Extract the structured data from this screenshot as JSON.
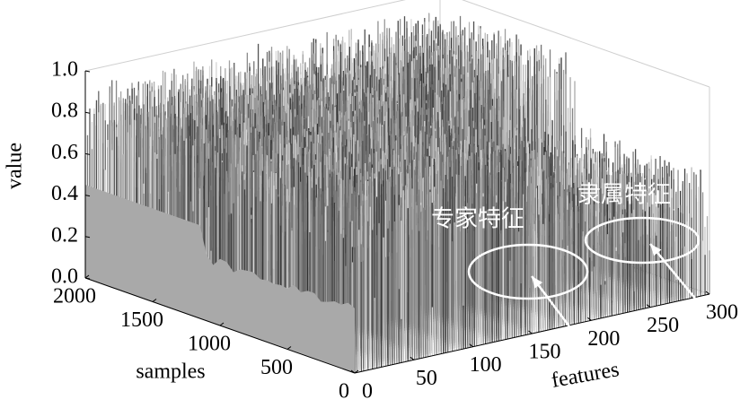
{
  "chart_data": {
    "type": "surface3d",
    "zlabel": "value",
    "xlabel": "features",
    "ylabel": "samples",
    "xlim": [
      0,
      300
    ],
    "xticks": [
      0,
      50,
      100,
      150,
      200,
      250,
      300
    ],
    "ylim": [
      0,
      2000
    ],
    "yticks": [
      0,
      500,
      1000,
      1500,
      2000
    ],
    "zlim": [
      0,
      1
    ],
    "zticks": [
      {
        "value": 0,
        "label": "0.0"
      },
      {
        "value": 0.2,
        "label": "0.2"
      },
      {
        "value": 0.4,
        "label": "0.4"
      },
      {
        "value": 0.6,
        "label": "0.6"
      },
      {
        "value": 0.8,
        "label": "0.8"
      },
      {
        "value": 1,
        "label": "1.0"
      }
    ],
    "annotations": [
      {
        "text": "专家特征"
      },
      {
        "text": "隶属特征"
      }
    ]
  }
}
